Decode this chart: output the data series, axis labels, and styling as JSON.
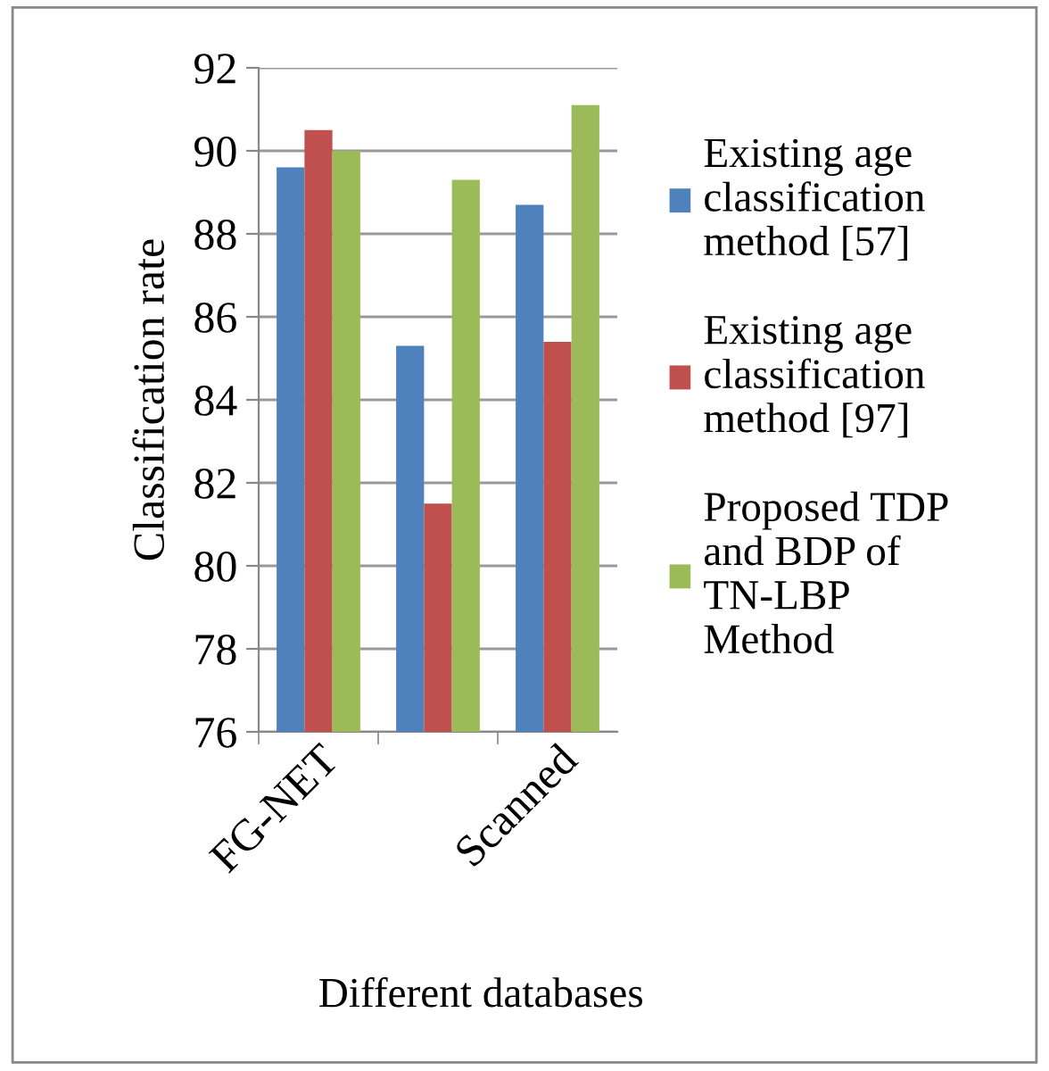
{
  "chart_data": {
    "type": "bar",
    "xlabel": "Different databases",
    "ylabel": "Classification rate",
    "categories": [
      "FG-NET",
      null,
      "Scanned"
    ],
    "series": [
      {
        "name": "Existing age\nclassification\nmethod [57]",
        "color": "#4f81bd",
        "values": [
          89.6,
          85.3,
          88.7
        ]
      },
      {
        "name": "Existing age\nclassification\nmethod [97]",
        "color": "#c0504d",
        "values": [
          90.5,
          81.5,
          85.4
        ]
      },
      {
        "name": "Proposed TDP\nand BDP of\nTN-LBP\nMethod",
        "color": "#9bbb59",
        "values": [
          90.0,
          89.3,
          91.1
        ]
      }
    ],
    "ylim": [
      76,
      92
    ],
    "yticks": [
      76,
      78,
      80,
      82,
      84,
      86,
      88,
      90,
      92
    ],
    "grid": "y",
    "legend": "right"
  }
}
